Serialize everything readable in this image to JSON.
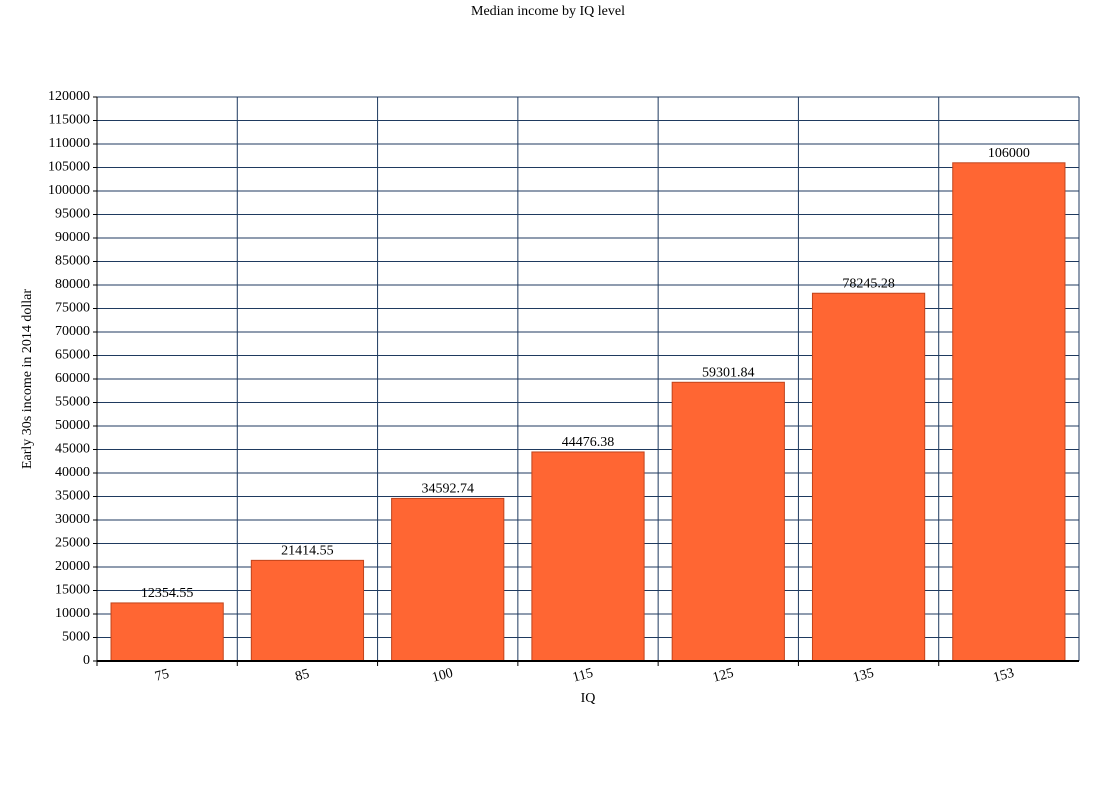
{
  "chart_data": {
    "type": "bar",
    "title": "Median income by IQ level",
    "xlabel": "IQ",
    "ylabel": "Early 30s income in 2014 dollar",
    "categories": [
      "75",
      "85",
      "100",
      "115",
      "125",
      "135",
      "153"
    ],
    "values": [
      12354.55,
      21414.55,
      34592.74,
      44476.38,
      59301.84,
      78245.28,
      106000
    ],
    "color": "#ff6633",
    "ylim": [
      0,
      120000
    ],
    "yticks": [
      0,
      5000,
      10000,
      15000,
      20000,
      25000,
      30000,
      35000,
      40000,
      45000,
      50000,
      55000,
      60000,
      65000,
      70000,
      75000,
      80000,
      85000,
      90000,
      95000,
      100000,
      105000,
      110000,
      115000,
      120000
    ],
    "grid": true
  }
}
